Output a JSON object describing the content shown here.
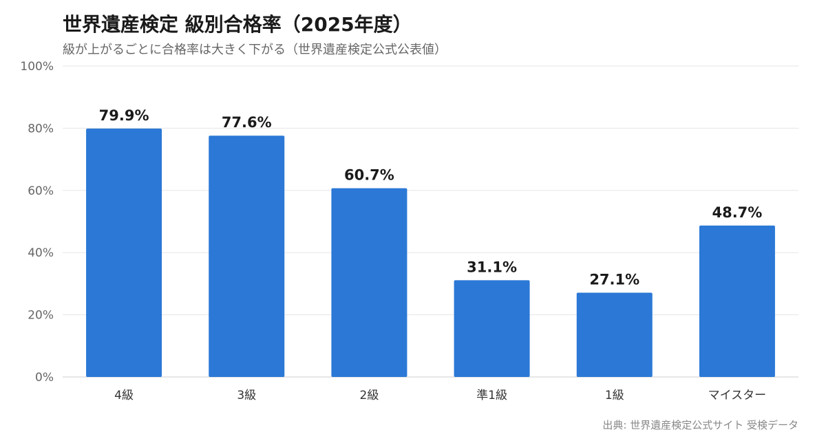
{
  "chart_data": {
    "type": "bar",
    "title": "世界遺産検定 級別合格率（2025年度）",
    "subtitle": "級が上がるごとに合格率は大きく下がる（世界遺産検定公式公表値）",
    "categories": [
      "4級",
      "3級",
      "2級",
      "準1級",
      "1級",
      "マイスター"
    ],
    "values": [
      79.9,
      77.6,
      60.7,
      31.1,
      27.1,
      48.7
    ],
    "value_labels": [
      "79.9%",
      "77.6%",
      "60.7%",
      "31.1%",
      "27.1%",
      "48.7%"
    ],
    "ylim": [
      0,
      100
    ],
    "yticks": [
      0,
      20,
      40,
      60,
      80,
      100
    ],
    "ytick_labels": [
      "0%",
      "20%",
      "40%",
      "60%",
      "80%",
      "100%"
    ],
    "xlabel": "",
    "ylabel": "",
    "grid": true,
    "bar_color": "#2b78d6",
    "source": "出典: 世界遺産検定公式サイト 受検データ"
  }
}
